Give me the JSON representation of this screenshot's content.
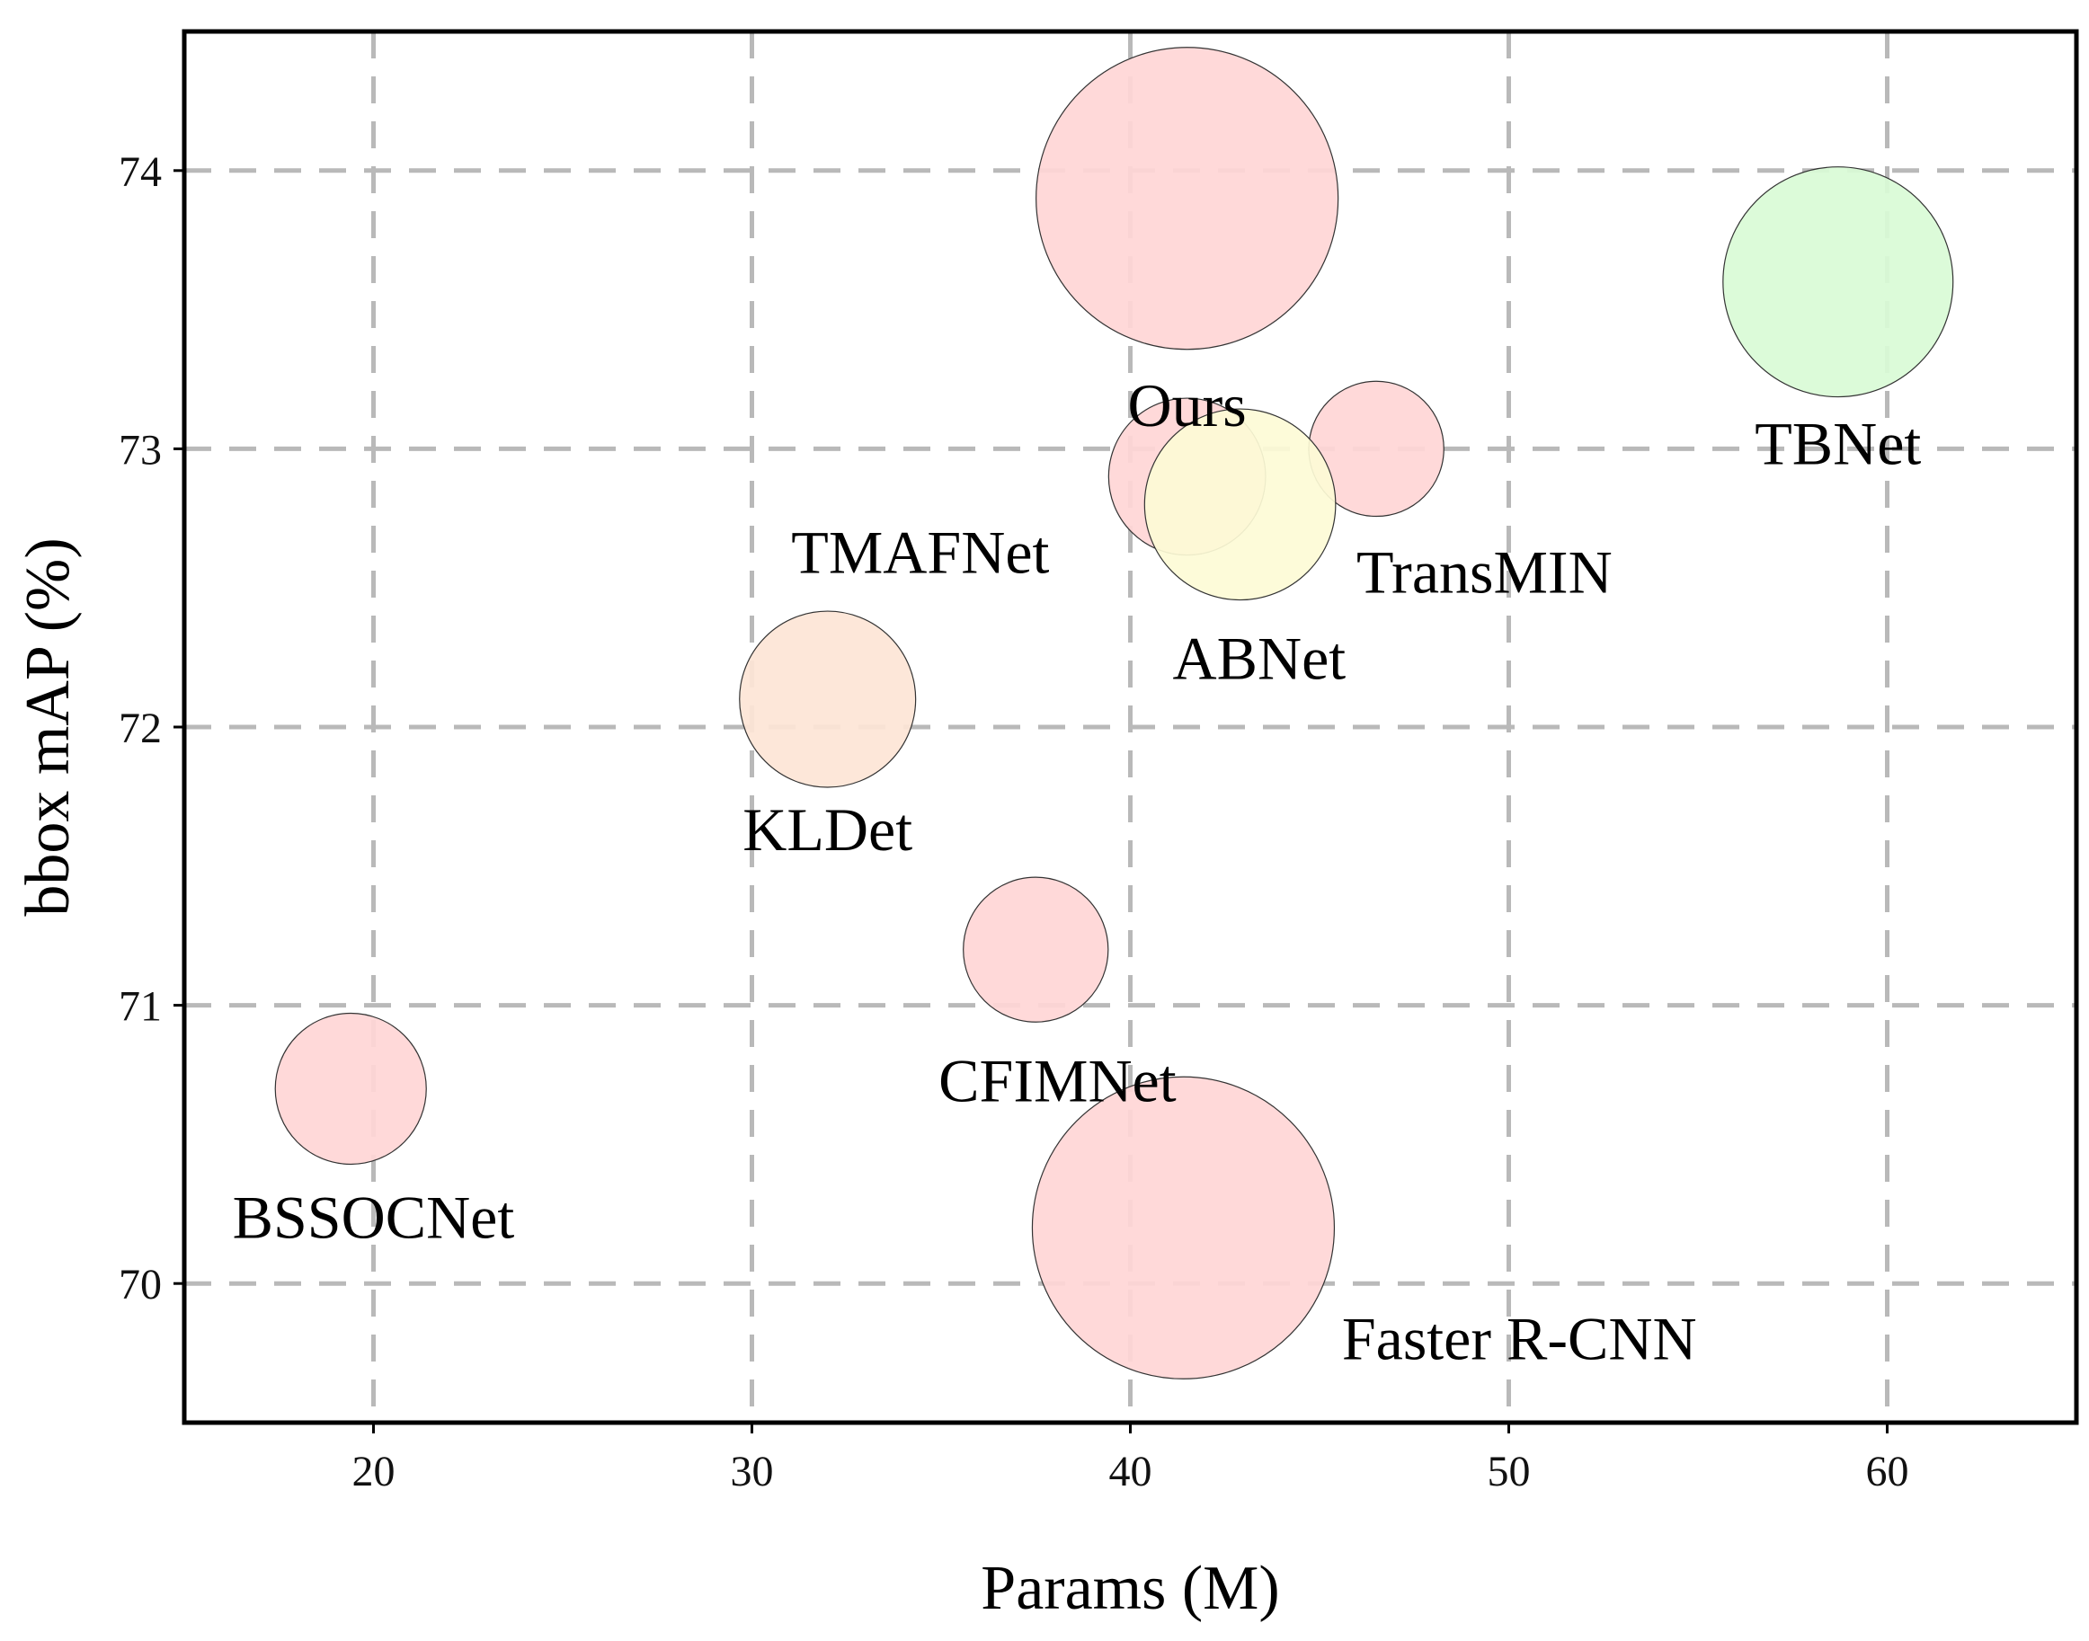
{
  "chart_data": {
    "type": "scatter",
    "subtype": "bubble",
    "title": "",
    "xlabel": "Params (M)",
    "ylabel": "bbox mAP (%)",
    "xlim": [
      15,
      65
    ],
    "ylim": [
      69.5,
      74.5
    ],
    "xticks": [
      20,
      30,
      40,
      50,
      60
    ],
    "yticks": [
      70,
      71,
      72,
      73,
      74
    ],
    "grid": true,
    "points": [
      {
        "name": "Ours",
        "x": 41.5,
        "y": 73.9,
        "size": 100,
        "color": "#ffd6d6"
      },
      {
        "name": "TBNet",
        "x": 58.7,
        "y": 73.6,
        "size": 58,
        "color": "#d9fbd6"
      },
      {
        "name": "TransMIN",
        "x": 46.5,
        "y": 73.0,
        "size": 20,
        "color": "#ffd6d6"
      },
      {
        "name": "TMAFNet",
        "x": 41.5,
        "y": 72.9,
        "size": 27,
        "color": "#ffd6d6"
      },
      {
        "name": "ABNet",
        "x": 42.9,
        "y": 72.8,
        "size": 40,
        "color": "#fdfbd6"
      },
      {
        "name": "KLDet",
        "x": 32.0,
        "y": 72.1,
        "size": 34,
        "color": "#fde5d6"
      },
      {
        "name": "CFIMNet",
        "x": 37.5,
        "y": 71.2,
        "size": 23,
        "color": "#ffd6d6"
      },
      {
        "name": "BSSOCNet",
        "x": 19.4,
        "y": 70.7,
        "size": 25,
        "color": "#ffd6d6"
      },
      {
        "name": "Faster R-CNN",
        "x": 41.4,
        "y": 70.2,
        "size": 100,
        "color": "#ffd6d6"
      }
    ]
  }
}
